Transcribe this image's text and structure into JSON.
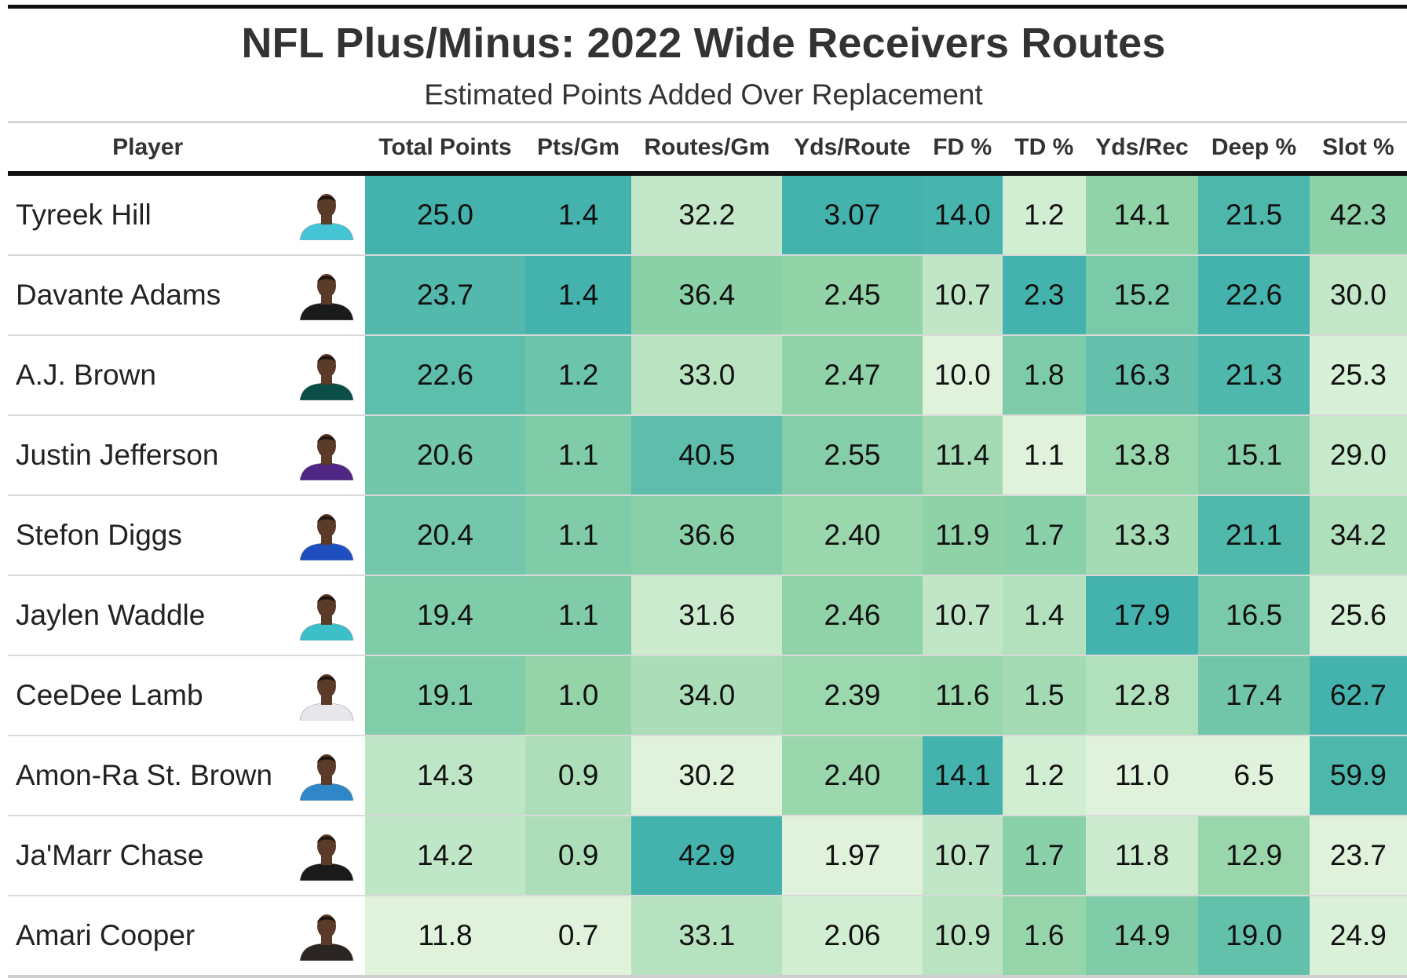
{
  "chart_data": {
    "type": "table",
    "title": "NFL Plus/Minus: 2022 Wide Receivers Routes",
    "subtitle": "Estimated Points Added Over Replacement",
    "columns": [
      "Player",
      "",
      "Total Points",
      "Pts/Gm",
      "Routes/Gm",
      "Yds/Route",
      "FD %",
      "TD %",
      "Yds/Rec",
      "Deep %",
      "Slot %"
    ],
    "rows": [
      {
        "player": "Tyreek Hill",
        "jersey": "#45c4d6",
        "values": [
          "25.0",
          "1.4",
          "32.2",
          "3.07",
          "14.0",
          "1.2",
          "14.1",
          "21.5",
          "42.3"
        ]
      },
      {
        "player": "Davante Adams",
        "jersey": "#1a1a1a",
        "values": [
          "23.7",
          "1.4",
          "36.4",
          "2.45",
          "10.7",
          "2.3",
          "15.2",
          "22.6",
          "30.0"
        ]
      },
      {
        "player": "A.J. Brown",
        "jersey": "#0b4d47",
        "values": [
          "22.6",
          "1.2",
          "33.0",
          "2.47",
          "10.0",
          "1.8",
          "16.3",
          "21.3",
          "25.3"
        ]
      },
      {
        "player": "Justin Jefferson",
        "jersey": "#4f2683",
        "values": [
          "20.6",
          "1.1",
          "40.5",
          "2.55",
          "11.4",
          "1.1",
          "13.8",
          "15.1",
          "29.0"
        ]
      },
      {
        "player": "Stefon Diggs",
        "jersey": "#1f4fbf",
        "values": [
          "20.4",
          "1.1",
          "36.6",
          "2.40",
          "11.9",
          "1.7",
          "13.3",
          "21.1",
          "34.2"
        ]
      },
      {
        "player": "Jaylen Waddle",
        "jersey": "#3bbfc9",
        "values": [
          "19.4",
          "1.1",
          "31.6",
          "2.46",
          "10.7",
          "1.4",
          "17.9",
          "16.5",
          "25.6"
        ]
      },
      {
        "player": "CeeDee Lamb",
        "jersey": "#e8e8ec",
        "values": [
          "19.1",
          "1.0",
          "34.0",
          "2.39",
          "11.6",
          "1.5",
          "12.8",
          "17.4",
          "62.7"
        ]
      },
      {
        "player": "Amon-Ra St. Brown",
        "jersey": "#2f86c8",
        "values": [
          "14.3",
          "0.9",
          "30.2",
          "2.40",
          "14.1",
          "1.2",
          "11.0",
          "6.5",
          "59.9"
        ]
      },
      {
        "player": "Ja'Marr Chase",
        "jersey": "#1a1a1a",
        "values": [
          "14.2",
          "0.9",
          "42.9",
          "1.97",
          "10.7",
          "1.7",
          "11.8",
          "12.9",
          "23.7"
        ]
      },
      {
        "player": "Amari Cooper",
        "jersey": "#2a2522",
        "values": [
          "11.8",
          "0.7",
          "33.1",
          "2.06",
          "10.9",
          "1.6",
          "14.9",
          "19.0",
          "24.9"
        ]
      }
    ]
  },
  "colors": {
    "scale_low": "#f8fcec",
    "scale_mid": "#93d4a8",
    "scale_high": "#44b3ad"
  }
}
